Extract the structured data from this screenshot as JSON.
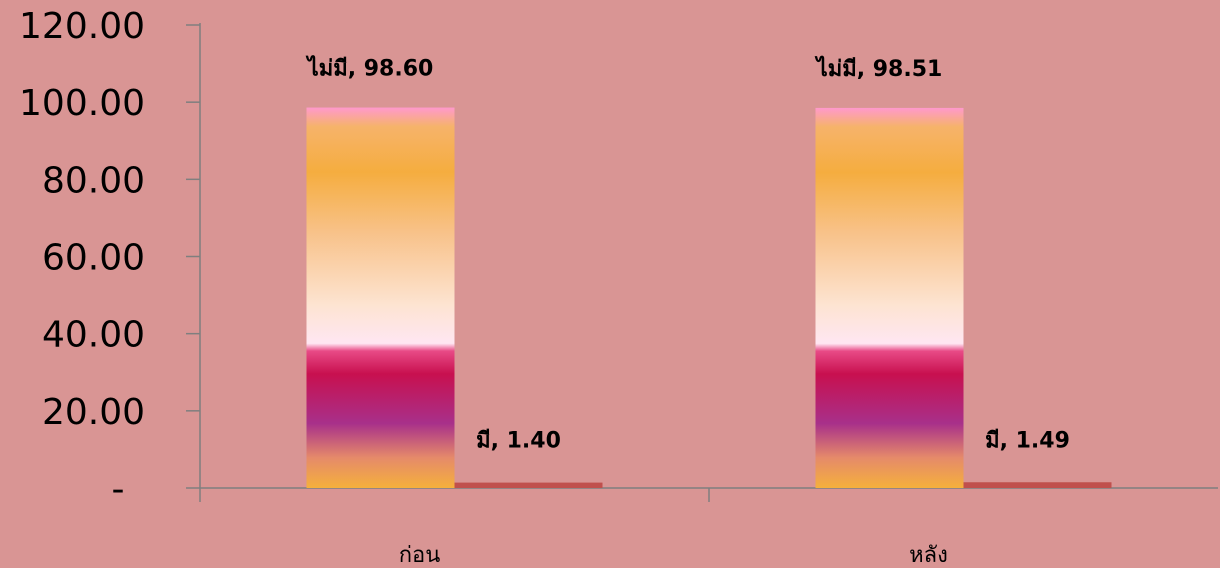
{
  "chart_data": {
    "type": "bar",
    "categories": [
      "ก่อน",
      "หลัง"
    ],
    "series": [
      {
        "name": "ไม่มี",
        "values": [
          98.6,
          98.51
        ],
        "style": "gradient"
      },
      {
        "name": "มี",
        "values": [
          1.4,
          1.49
        ],
        "color": "#c0504d"
      }
    ],
    "data_labels": [
      [
        "ไม่มี,  98.60",
        "ไม่มี,  98.51"
      ],
      [
        "มี,  1.40",
        "มี,  1.49"
      ]
    ],
    "y_tick_values": [
      0,
      20,
      40,
      60,
      80,
      100,
      120
    ],
    "y_tick_labels": [
      "-",
      "20.00",
      "40.00",
      "60.00",
      "80.00",
      "100.00",
      "120.00"
    ],
    "ylim": [
      0,
      120
    ],
    "grid": false,
    "legend": "none",
    "colors": {
      "background": "#d99594",
      "axis": "#7f7f7f",
      "series2": "#c0504d"
    }
  }
}
